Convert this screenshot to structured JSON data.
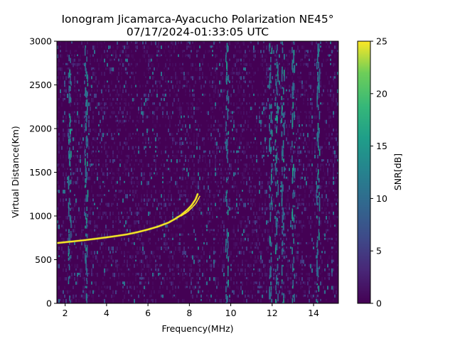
{
  "chart_data": {
    "type": "heatmap",
    "title": "Ionogram Jicamarca-Ayacucho Polarization NE45°",
    "subtitle": "07/17/2024-01:33:05 UTC",
    "xlabel": "Frequency(MHz)",
    "ylabel": "Virtual Distance(Km)",
    "xlim": [
      1.6,
      15.2
    ],
    "ylim": [
      0,
      3000
    ],
    "xticks": [
      2,
      4,
      6,
      8,
      10,
      12,
      14
    ],
    "yticks": [
      0,
      500,
      1000,
      1500,
      2000,
      2500,
      3000
    ],
    "grid": false,
    "colorbar": {
      "label": "SNR[dB]",
      "min": 0,
      "max": 25,
      "ticks": [
        0,
        5,
        10,
        15,
        20,
        25
      ],
      "colormap": "viridis"
    },
    "colors": {
      "background_low": "#440154",
      "trace": "#fde725"
    },
    "trace_o": {
      "name": "",
      "x": [
        1.6,
        2.0,
        2.5,
        3.0,
        3.5,
        4.0,
        4.5,
        5.0,
        5.5,
        6.0,
        6.5,
        7.0,
        7.3,
        7.6,
        7.9,
        8.1,
        8.3,
        8.4
      ],
      "y": [
        690,
        700,
        712,
        725,
        740,
        755,
        772,
        790,
        815,
        845,
        880,
        925,
        965,
        1010,
        1070,
        1120,
        1190,
        1250
      ]
    },
    "trace_x": {
      "name": "",
      "x": [
        7.6,
        7.9,
        8.1,
        8.3,
        8.4,
        8.5
      ],
      "y": [
        1000,
        1045,
        1090,
        1140,
        1180,
        1225
      ]
    },
    "interference_bands_mhz": [
      2.2,
      3.0,
      9.8,
      11.9,
      12.2,
      12.5,
      13.0,
      14.2
    ]
  }
}
